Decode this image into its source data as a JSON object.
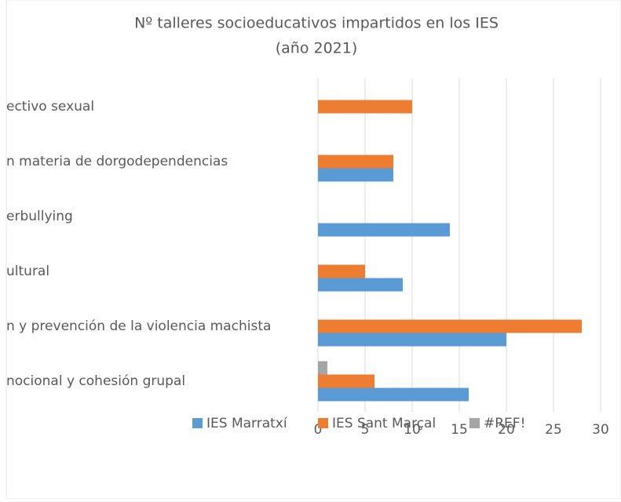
{
  "chart_data": {
    "type": "bar",
    "orientation": "horizontal",
    "title": "Nº talleres socioeducativos impartidos en los IES",
    "subtitle": "(año 2021)",
    "categories": [
      "ectivo sexual",
      "n materia de dorgodependencias",
      "erbullying",
      "ultural",
      "n y prevención de la violencia machista",
      "nocional y cohesión grupal"
    ],
    "series": [
      {
        "name": "IES Marratxí",
        "color": "#5b9bd5",
        "values": [
          null,
          8,
          14,
          9,
          20,
          16
        ]
      },
      {
        "name": "IES Sant Marçal",
        "color": "#ed7d31",
        "values": [
          10,
          8,
          null,
          5,
          28,
          6
        ]
      },
      {
        "name": "#REF!",
        "color": "#a5a5a5",
        "values": [
          null,
          null,
          null,
          null,
          null,
          1
        ]
      }
    ],
    "xlim": [
      0,
      30
    ],
    "xticks": [
      0,
      5,
      10,
      15,
      20,
      25,
      30
    ],
    "grid": true,
    "legend": "bottom"
  }
}
